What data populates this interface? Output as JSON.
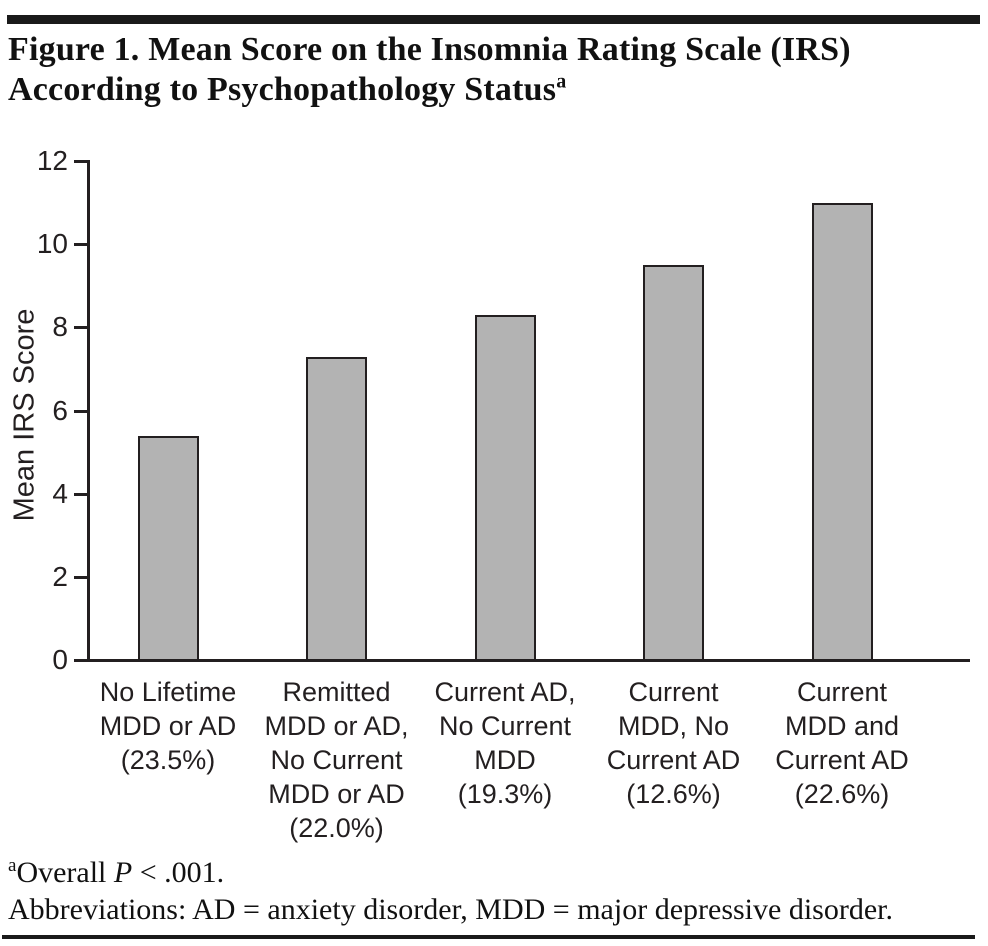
{
  "figure": {
    "title_line1": "Figure 1. Mean Score on the Insomnia Rating Scale (IRS)",
    "title_line2": "According to Psychopathology Status",
    "title_superscript": "a"
  },
  "chart_data": {
    "type": "bar",
    "title": "Figure 1. Mean Score on the Insomnia Rating Scale (IRS) According to Psychopathology Status",
    "xlabel": "",
    "ylabel": "Mean IRS Score",
    "ylim": [
      0,
      12
    ],
    "yticks": [
      0,
      2,
      4,
      6,
      8,
      10,
      12
    ],
    "grid": false,
    "legend": "none",
    "bar_fill_color": "#b3b3b3",
    "bar_border_color": "#231f20",
    "axis_color": "#231f20",
    "categories": [
      "No Lifetime MDD or AD (23.5%)",
      "Remitted MDD or AD, No Current MDD or AD (22.0%)",
      "Current AD, No Current MDD (19.3%)",
      "Current MDD, No Current AD (12.6%)",
      "Current MDD and Current AD (22.6%)"
    ],
    "categories_lines": [
      [
        "No Lifetime",
        "MDD or AD",
        "(23.5%)"
      ],
      [
        "Remitted",
        "MDD or AD,",
        "No Current",
        "MDD or AD",
        "(22.0%)"
      ],
      [
        "Current AD,",
        "No Current",
        "MDD",
        "(19.3%)"
      ],
      [
        "Current",
        "MDD, No",
        "Current AD",
        "(12.6%)"
      ],
      [
        "Current",
        "MDD and",
        "Current AD",
        "(22.6%)"
      ]
    ],
    "values": [
      5.4,
      7.3,
      8.3,
      9.5,
      11.0
    ]
  },
  "footnotes": {
    "overall_superscript": "a",
    "overall_pre": "Overall ",
    "overall_italic": "P",
    "overall_post": " < .001.",
    "abbreviations": "Abbreviations: AD = anxiety disorder, MDD = major depressive disorder."
  }
}
